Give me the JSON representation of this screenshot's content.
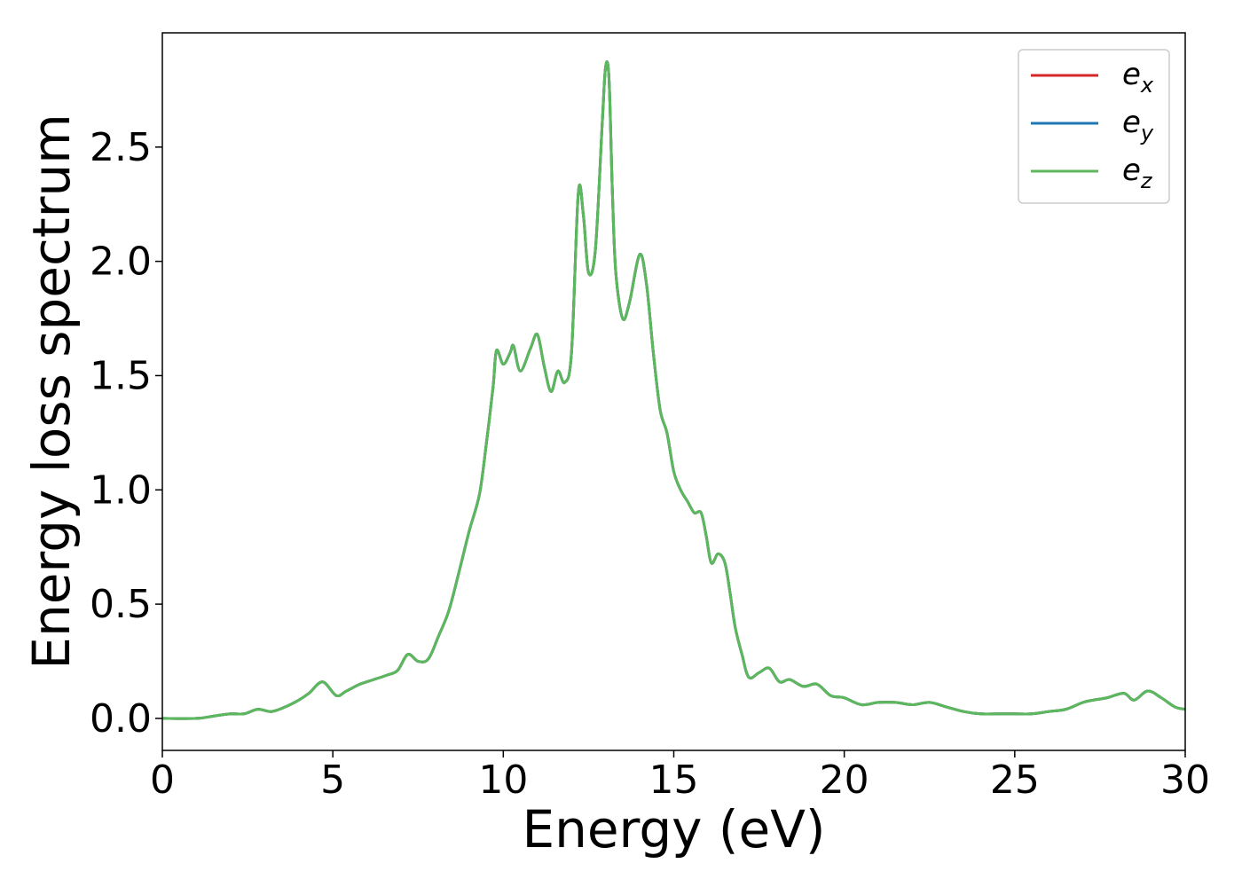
{
  "chart_data": {
    "type": "line",
    "title": "",
    "xlabel": "Energy (eV)",
    "ylabel": "Energy loss spectrum",
    "xlim": [
      0,
      30
    ],
    "ylim": [
      -0.14,
      3.0
    ],
    "xticks": [
      0,
      5,
      10,
      15,
      20,
      25,
      30
    ],
    "xtick_labels": [
      "0",
      "5",
      "10",
      "15",
      "20",
      "25",
      "30"
    ],
    "yticks": [
      0.0,
      0.5,
      1.0,
      1.5,
      2.0,
      2.5
    ],
    "ytick_labels": [
      "0.0",
      "0.5",
      "1.0",
      "1.5",
      "2.0",
      "2.5"
    ],
    "grid": false,
    "legend_position": "top-right",
    "series": [
      {
        "name": "e_x",
        "legend_base": "e",
        "legend_sub": "x",
        "color": "#d62728",
        "x": [
          0,
          1,
          1.5,
          2,
          2.4,
          2.8,
          3.2,
          3.6,
          4,
          4.3,
          4.7,
          5.1,
          5.4,
          5.8,
          6.2,
          6.6,
          6.9,
          7.2,
          7.5,
          7.8,
          8.1,
          8.4,
          8.7,
          9.0,
          9.3,
          9.5,
          9.7,
          9.8,
          10.0,
          10.2,
          10.3,
          10.5,
          10.8,
          11.0,
          11.2,
          11.4,
          11.6,
          11.8,
          12.0,
          12.2,
          12.35,
          12.5,
          12.7,
          12.9,
          13.0,
          13.1,
          13.2,
          13.3,
          13.5,
          13.7,
          14.0,
          14.2,
          14.4,
          14.6,
          14.8,
          15.0,
          15.2,
          15.4,
          15.6,
          15.8,
          15.95,
          16.1,
          16.3,
          16.5,
          16.65,
          16.8,
          17.0,
          17.2,
          17.5,
          17.8,
          18.1,
          18.4,
          18.8,
          19.2,
          19.6,
          20.0,
          20.5,
          21.0,
          21.5,
          22.0,
          22.5,
          23.0,
          23.5,
          24.0,
          24.5,
          25.0,
          25.5,
          26.0,
          26.5,
          27.0,
          27.3,
          27.7,
          28.2,
          28.5,
          28.9,
          29.3,
          29.7,
          30.0
        ],
        "y": [
          0.0,
          0.0,
          0.01,
          0.02,
          0.02,
          0.04,
          0.03,
          0.05,
          0.08,
          0.11,
          0.16,
          0.1,
          0.12,
          0.15,
          0.17,
          0.19,
          0.21,
          0.28,
          0.25,
          0.26,
          0.36,
          0.47,
          0.64,
          0.82,
          0.98,
          1.2,
          1.45,
          1.61,
          1.55,
          1.6,
          1.63,
          1.52,
          1.62,
          1.68,
          1.54,
          1.43,
          1.52,
          1.47,
          1.6,
          2.3,
          2.2,
          1.95,
          2.05,
          2.6,
          2.85,
          2.8,
          2.3,
          1.95,
          1.75,
          1.82,
          2.03,
          1.9,
          1.6,
          1.35,
          1.25,
          1.08,
          1.0,
          0.95,
          0.9,
          0.9,
          0.8,
          0.68,
          0.72,
          0.68,
          0.55,
          0.4,
          0.28,
          0.18,
          0.2,
          0.22,
          0.16,
          0.17,
          0.14,
          0.15,
          0.1,
          0.09,
          0.06,
          0.07,
          0.07,
          0.06,
          0.07,
          0.05,
          0.03,
          0.02,
          0.02,
          0.02,
          0.02,
          0.03,
          0.04,
          0.07,
          0.08,
          0.09,
          0.11,
          0.08,
          0.12,
          0.09,
          0.05,
          0.04
        ]
      },
      {
        "name": "e_y",
        "legend_base": "e",
        "legend_sub": "y",
        "color": "#1f77b4",
        "x": [
          0,
          1,
          1.5,
          2,
          2.4,
          2.8,
          3.2,
          3.6,
          4,
          4.3,
          4.7,
          5.1,
          5.4,
          5.8,
          6.2,
          6.6,
          6.9,
          7.2,
          7.5,
          7.8,
          8.1,
          8.4,
          8.7,
          9.0,
          9.3,
          9.5,
          9.7,
          9.8,
          10.0,
          10.2,
          10.3,
          10.5,
          10.8,
          11.0,
          11.2,
          11.4,
          11.6,
          11.8,
          12.0,
          12.2,
          12.35,
          12.5,
          12.7,
          12.9,
          13.0,
          13.1,
          13.2,
          13.3,
          13.5,
          13.7,
          14.0,
          14.2,
          14.4,
          14.6,
          14.8,
          15.0,
          15.2,
          15.4,
          15.6,
          15.8,
          15.95,
          16.1,
          16.3,
          16.5,
          16.65,
          16.8,
          17.0,
          17.2,
          17.5,
          17.8,
          18.1,
          18.4,
          18.8,
          19.2,
          19.6,
          20.0,
          20.5,
          21.0,
          21.5,
          22.0,
          22.5,
          23.0,
          23.5,
          24.0,
          24.5,
          25.0,
          25.5,
          26.0,
          26.5,
          27.0,
          27.3,
          27.7,
          28.2,
          28.5,
          28.9,
          29.3,
          29.7,
          30.0
        ],
        "y": [
          0.0,
          0.0,
          0.01,
          0.02,
          0.02,
          0.04,
          0.03,
          0.05,
          0.08,
          0.11,
          0.16,
          0.1,
          0.12,
          0.15,
          0.17,
          0.19,
          0.21,
          0.28,
          0.25,
          0.26,
          0.36,
          0.47,
          0.64,
          0.82,
          0.98,
          1.2,
          1.45,
          1.61,
          1.55,
          1.6,
          1.63,
          1.52,
          1.62,
          1.68,
          1.54,
          1.43,
          1.52,
          1.47,
          1.6,
          2.3,
          2.2,
          1.95,
          2.05,
          2.6,
          2.85,
          2.8,
          2.3,
          1.95,
          1.75,
          1.82,
          2.03,
          1.9,
          1.6,
          1.35,
          1.25,
          1.08,
          1.0,
          0.95,
          0.9,
          0.9,
          0.8,
          0.68,
          0.72,
          0.68,
          0.55,
          0.4,
          0.28,
          0.18,
          0.2,
          0.22,
          0.16,
          0.17,
          0.14,
          0.15,
          0.1,
          0.09,
          0.06,
          0.07,
          0.07,
          0.06,
          0.07,
          0.05,
          0.03,
          0.02,
          0.02,
          0.02,
          0.02,
          0.03,
          0.04,
          0.07,
          0.08,
          0.09,
          0.11,
          0.08,
          0.12,
          0.09,
          0.05,
          0.04
        ]
      },
      {
        "name": "e_z",
        "legend_base": "e",
        "legend_sub": "z",
        "color": "#5cb85c",
        "x": [
          0,
          1,
          1.5,
          2,
          2.4,
          2.8,
          3.2,
          3.6,
          4,
          4.3,
          4.7,
          5.1,
          5.4,
          5.8,
          6.2,
          6.6,
          6.9,
          7.2,
          7.5,
          7.8,
          8.1,
          8.4,
          8.7,
          9.0,
          9.3,
          9.5,
          9.7,
          9.8,
          10.0,
          10.2,
          10.3,
          10.5,
          10.8,
          11.0,
          11.2,
          11.4,
          11.6,
          11.8,
          12.0,
          12.2,
          12.35,
          12.5,
          12.7,
          12.9,
          13.0,
          13.1,
          13.2,
          13.3,
          13.5,
          13.7,
          14.0,
          14.2,
          14.4,
          14.6,
          14.8,
          15.0,
          15.2,
          15.4,
          15.6,
          15.8,
          15.95,
          16.1,
          16.3,
          16.5,
          16.65,
          16.8,
          17.0,
          17.2,
          17.5,
          17.8,
          18.1,
          18.4,
          18.8,
          19.2,
          19.6,
          20.0,
          20.5,
          21.0,
          21.5,
          22.0,
          22.5,
          23.0,
          23.5,
          24.0,
          24.5,
          25.0,
          25.5,
          26.0,
          26.5,
          27.0,
          27.3,
          27.7,
          28.2,
          28.5,
          28.9,
          29.3,
          29.7,
          30.0
        ],
        "y": [
          0.0,
          0.0,
          0.01,
          0.02,
          0.02,
          0.04,
          0.03,
          0.05,
          0.08,
          0.11,
          0.16,
          0.1,
          0.12,
          0.15,
          0.17,
          0.19,
          0.21,
          0.28,
          0.25,
          0.26,
          0.36,
          0.47,
          0.64,
          0.82,
          0.98,
          1.2,
          1.45,
          1.61,
          1.55,
          1.6,
          1.63,
          1.52,
          1.62,
          1.68,
          1.54,
          1.43,
          1.52,
          1.47,
          1.6,
          2.3,
          2.2,
          1.95,
          2.05,
          2.6,
          2.85,
          2.8,
          2.3,
          1.95,
          1.75,
          1.82,
          2.03,
          1.9,
          1.6,
          1.35,
          1.25,
          1.08,
          1.0,
          0.95,
          0.9,
          0.9,
          0.8,
          0.68,
          0.72,
          0.68,
          0.55,
          0.4,
          0.28,
          0.18,
          0.2,
          0.22,
          0.16,
          0.17,
          0.14,
          0.15,
          0.1,
          0.09,
          0.06,
          0.07,
          0.07,
          0.06,
          0.07,
          0.05,
          0.03,
          0.02,
          0.02,
          0.02,
          0.02,
          0.03,
          0.04,
          0.07,
          0.08,
          0.09,
          0.11,
          0.08,
          0.12,
          0.09,
          0.05,
          0.04
        ]
      }
    ]
  }
}
